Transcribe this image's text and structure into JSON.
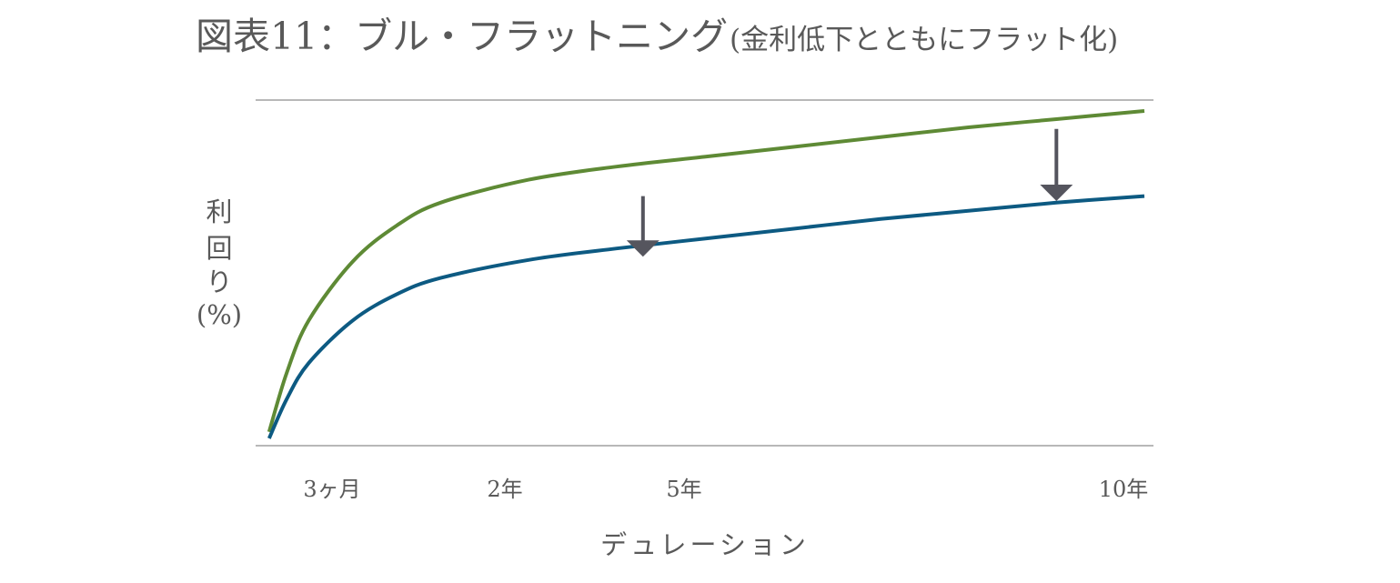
{
  "chart_data": {
    "type": "line",
    "title": "図表11：ブル・フラットニング",
    "subtitle": "(金利低下とともにフラット化)",
    "ylabel_lines": [
      "利",
      "回",
      "り",
      "(%)"
    ],
    "xlabel": "デュレーション",
    "x_ticks": [
      {
        "label": "3ヶ月",
        "x": 0.25
      },
      {
        "label": "2年",
        "x": 2
      },
      {
        "label": "5年",
        "x": 5
      },
      {
        "label": "10年",
        "x": 10
      }
    ],
    "series": [
      {
        "color": "#5e8a35",
        "x": [
          0.05,
          0.25,
          0.5,
          1,
          1.5,
          2,
          3,
          4,
          5,
          6,
          7,
          8,
          9,
          10
        ],
        "y": [
          0.2,
          2.0,
          3.6,
          5.4,
          6.5,
          7.2,
          7.9,
          8.3,
          8.6,
          8.9,
          9.2,
          9.5,
          9.75,
          10.0
        ]
      },
      {
        "color": "#0d5a82",
        "x": [
          0.05,
          0.25,
          0.5,
          1,
          1.5,
          2,
          3,
          4,
          5,
          6,
          7,
          8,
          9,
          10
        ],
        "y": [
          0.0,
          1.2,
          2.3,
          3.6,
          4.4,
          4.9,
          5.45,
          5.8,
          6.1,
          6.4,
          6.7,
          6.95,
          7.2,
          7.4
        ]
      }
    ],
    "annotations": [
      {
        "type": "arrow-down",
        "x": 4.3,
        "from_y": 7.4,
        "to_y": 5.55
      },
      {
        "type": "arrow-down",
        "x": 9.0,
        "from_y": 9.45,
        "to_y": 7.25
      }
    ],
    "xlim": [
      0,
      10
    ],
    "ylim": [
      0,
      10
    ],
    "grid": false,
    "frame_lines": [
      "top",
      "bottom"
    ],
    "colors": {
      "text": "#595959",
      "frame": "#707070",
      "arrow": "#55555e"
    }
  }
}
